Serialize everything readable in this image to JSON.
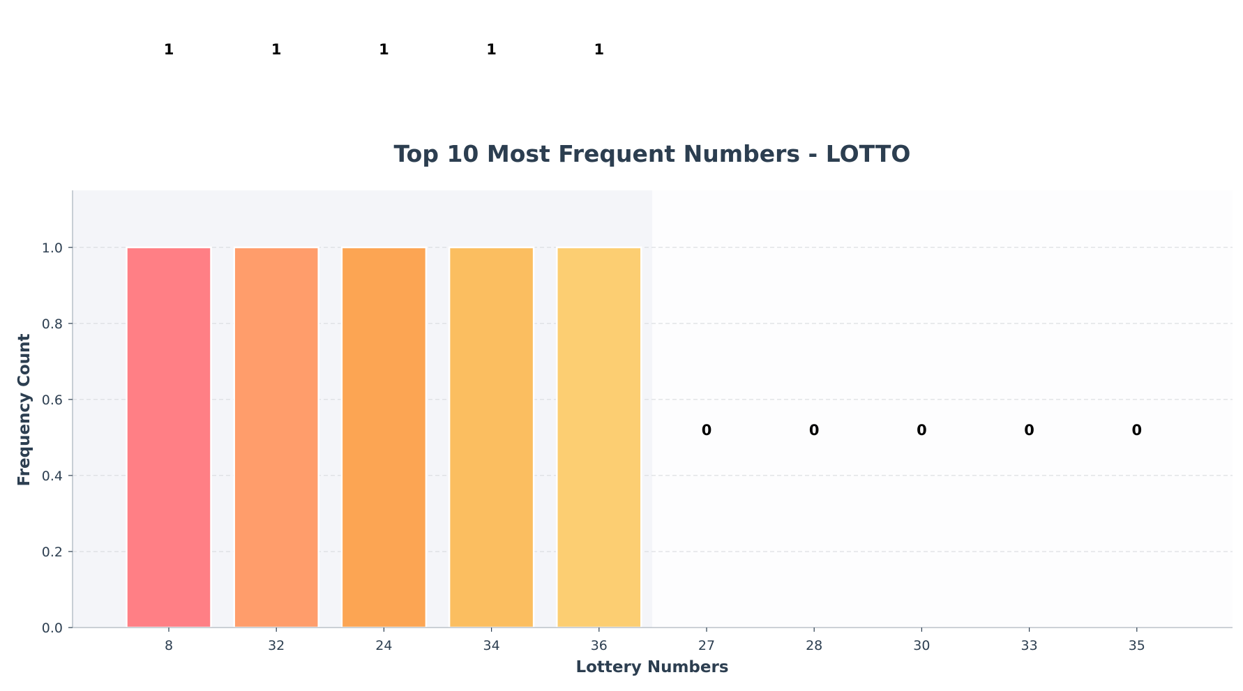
{
  "chart_data": {
    "type": "bar",
    "title": "Top 10 Most Frequent Numbers - LOTTO",
    "xlabel": "Lottery Numbers",
    "ylabel": "Frequency Count",
    "categories": [
      "8",
      "32",
      "24",
      "34",
      "36",
      "27",
      "28",
      "30",
      "33",
      "35"
    ],
    "values": [
      1,
      1,
      1,
      1,
      1,
      0,
      0,
      0,
      0,
      0
    ],
    "value_labels": [
      "1",
      "1",
      "1",
      "1",
      "1",
      "0",
      "0",
      "0",
      "0",
      "0"
    ],
    "ylim": [
      0,
      1.15
    ],
    "yticks": [
      "0.0",
      "0.2",
      "0.4",
      "0.6",
      "0.8",
      "1.0"
    ],
    "grid": "horizontal dashed",
    "colors": [
      "#ff7f85",
      "#ff9d6b",
      "#fca553",
      "#fbbe60",
      "#fcce72",
      "#fcce72",
      "#fcce72",
      "#fcce72",
      "#fcce72",
      "#fcce72"
    ],
    "plot_background": "#f4f5f9"
  }
}
